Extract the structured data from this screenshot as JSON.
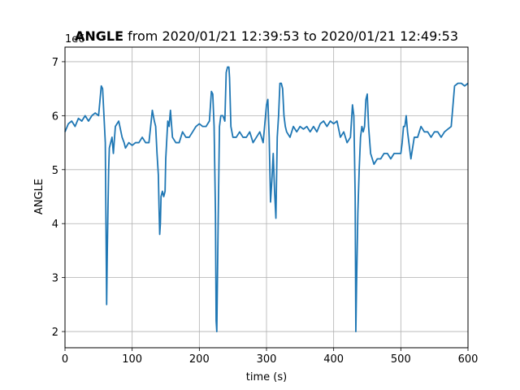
{
  "chart_data": {
    "type": "line",
    "title_bold": "ANGLE",
    "title_rest": " from 2020/01/21 12:39:53 to 2020/01/21 12:49:53",
    "xlabel": "time (s)",
    "ylabel": "ANGLE",
    "y_offset_label": "1e6",
    "xlim": [
      0,
      600
    ],
    "ylim": [
      1.7,
      7.27
    ],
    "xticks": [
      0,
      100,
      200,
      300,
      400,
      500,
      600
    ],
    "xtick_labels": [
      "0",
      "100",
      "200",
      "300",
      "400",
      "500",
      "600"
    ],
    "yticks": [
      2,
      3,
      4,
      5,
      6,
      7
    ],
    "ytick_labels": [
      "2",
      "3",
      "4",
      "5",
      "6",
      "7"
    ],
    "grid": true,
    "line_color": "#1f77b4",
    "series": [
      {
        "x": [
          0,
          5,
          10,
          15,
          20,
          25,
          30,
          35,
          40,
          45,
          50,
          54,
          56,
          58,
          60,
          61,
          62,
          63,
          64,
          65,
          66,
          68,
          70,
          72,
          75,
          80,
          85,
          88,
          90,
          95,
          100,
          105,
          110,
          115,
          120,
          125,
          130,
          133,
          135,
          137,
          139,
          140,
          141,
          142,
          143,
          145,
          147,
          149,
          150,
          153,
          155,
          157,
          160,
          165,
          170,
          175,
          180,
          185,
          190,
          195,
          200,
          205,
          210,
          215,
          218,
          220,
          222,
          223,
          224,
          225,
          226,
          227,
          228,
          230,
          232,
          235,
          238,
          240,
          242,
          244,
          245,
          247,
          250,
          255,
          260,
          265,
          270,
          275,
          280,
          285,
          290,
          295,
          300,
          302,
          304,
          306,
          308,
          310,
          312,
          314,
          316,
          318,
          320,
          322,
          324,
          326,
          328,
          330,
          335,
          340,
          345,
          350,
          355,
          360,
          365,
          370,
          375,
          380,
          385,
          390,
          395,
          400,
          405,
          410,
          415,
          420,
          425,
          428,
          430,
          431,
          432,
          433,
          434,
          436,
          438,
          440,
          442,
          444,
          446,
          448,
          450,
          452,
          455,
          460,
          465,
          470,
          475,
          480,
          485,
          490,
          495,
          500,
          502,
          504,
          506,
          508,
          510,
          515,
          520,
          525,
          530,
          535,
          540,
          545,
          550,
          555,
          560,
          565,
          570,
          575,
          580,
          585,
          590,
          595,
          600
        ],
        "y": [
          5.7,
          5.85,
          5.9,
          5.8,
          5.95,
          5.9,
          6.0,
          5.9,
          6.0,
          6.05,
          6.0,
          6.55,
          6.5,
          6.0,
          5.5,
          4.0,
          2.5,
          3.5,
          4.3,
          5.0,
          5.4,
          5.5,
          5.6,
          5.3,
          5.8,
          5.9,
          5.6,
          5.5,
          5.4,
          5.5,
          5.45,
          5.5,
          5.5,
          5.6,
          5.5,
          5.5,
          6.1,
          5.9,
          5.8,
          5.3,
          4.9,
          4.3,
          3.8,
          4.0,
          4.5,
          4.6,
          4.5,
          4.6,
          5.2,
          5.9,
          5.8,
          6.1,
          5.6,
          5.5,
          5.5,
          5.7,
          5.6,
          5.6,
          5.7,
          5.8,
          5.85,
          5.8,
          5.8,
          5.9,
          6.45,
          6.4,
          5.8,
          5.0,
          4.2,
          2.2,
          2.0,
          3.0,
          4.0,
          5.8,
          6.0,
          6.0,
          5.9,
          6.8,
          6.9,
          6.9,
          6.7,
          5.8,
          5.6,
          5.6,
          5.7,
          5.6,
          5.6,
          5.7,
          5.5,
          5.6,
          5.7,
          5.5,
          6.2,
          6.3,
          5.6,
          4.4,
          4.8,
          5.3,
          4.6,
          4.1,
          5.6,
          6.0,
          6.6,
          6.6,
          6.5,
          6.0,
          5.8,
          5.7,
          5.6,
          5.8,
          5.7,
          5.8,
          5.75,
          5.8,
          5.7,
          5.8,
          5.7,
          5.85,
          5.9,
          5.8,
          5.9,
          5.85,
          5.9,
          5.6,
          5.7,
          5.5,
          5.6,
          6.2,
          6.0,
          5.3,
          4.5,
          2.0,
          2.8,
          4.2,
          5.0,
          5.6,
          5.8,
          5.7,
          5.8,
          6.3,
          6.4,
          5.8,
          5.3,
          5.1,
          5.2,
          5.2,
          5.3,
          5.3,
          5.2,
          5.3,
          5.3,
          5.3,
          5.5,
          5.8,
          5.8,
          6.0,
          5.7,
          5.2,
          5.6,
          5.6,
          5.8,
          5.7,
          5.7,
          5.6,
          5.7,
          5.7,
          5.6,
          5.7,
          5.75,
          5.8,
          6.55,
          6.6,
          6.6,
          6.55,
          6.6
        ]
      }
    ]
  }
}
